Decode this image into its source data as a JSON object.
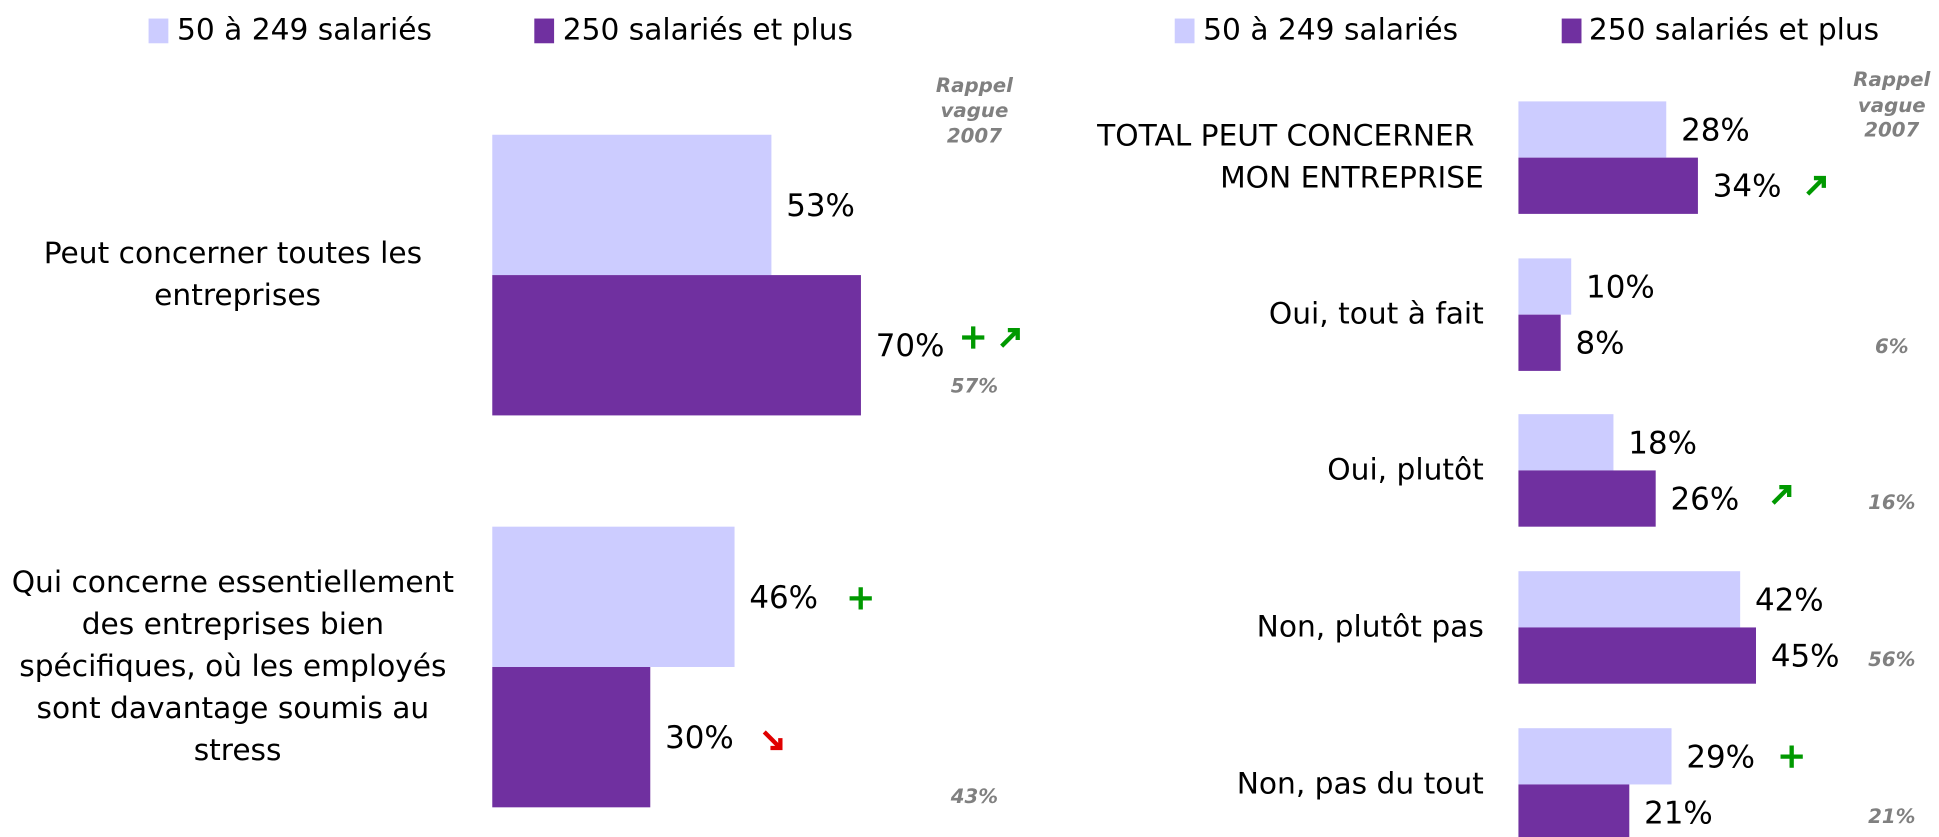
{
  "charts": [
    {
      "type": "bar",
      "orientation": "horizontal",
      "categories": [
        "Peut concerner toutes les entreprises",
        "Qui concerne essentiellement des entreprises bien spécifiques, où les employés sont davantage soumis au stress"
      ],
      "series": [
        {
          "name": "50 à 249 salariés",
          "color": "#ccccff",
          "values": [
            53,
            46
          ],
          "value_labels": [
            "53%",
            "46%"
          ]
        },
        {
          "name": "250 salariés et plus",
          "color": "#7030a0",
          "values": [
            70,
            30
          ],
          "value_labels": [
            "70%",
            "30%"
          ]
        }
      ],
      "rappel": {
        "title": [
          "Rappel",
          "vague",
          "2007"
        ],
        "values": [
          57,
          43
        ],
        "value_labels": [
          "57%",
          "43%"
        ]
      },
      "legend": "top"
    },
    {
      "type": "bar",
      "orientation": "horizontal",
      "categories": [
        "TOTAL PEUT CONCERNER MON ENTREPRISE",
        "Oui, tout à fait",
        "Oui, plutôt",
        "Non, plutôt pas",
        "Non, pas du tout"
      ],
      "series": [
        {
          "name": "50 à 249 salariés",
          "color": "#ccccff",
          "values": [
            28,
            10,
            18,
            42,
            29
          ],
          "value_labels": [
            "28%",
            "10%",
            "18%",
            "42%",
            "29%"
          ]
        },
        {
          "name": "250 salariés et plus",
          "color": "#7030a0",
          "values": [
            34,
            8,
            26,
            45,
            21
          ],
          "value_labels": [
            "34%",
            "8%",
            "26%",
            "45%",
            "21%"
          ]
        }
      ],
      "rappel": {
        "title": [
          "Rappel",
          "vague",
          "2007"
        ],
        "values": [
          null,
          6,
          16,
          56,
          21
        ],
        "value_labels": [
          null,
          "6%",
          "16%",
          "56%",
          "21%"
        ]
      },
      "legend": "top"
    }
  ]
}
